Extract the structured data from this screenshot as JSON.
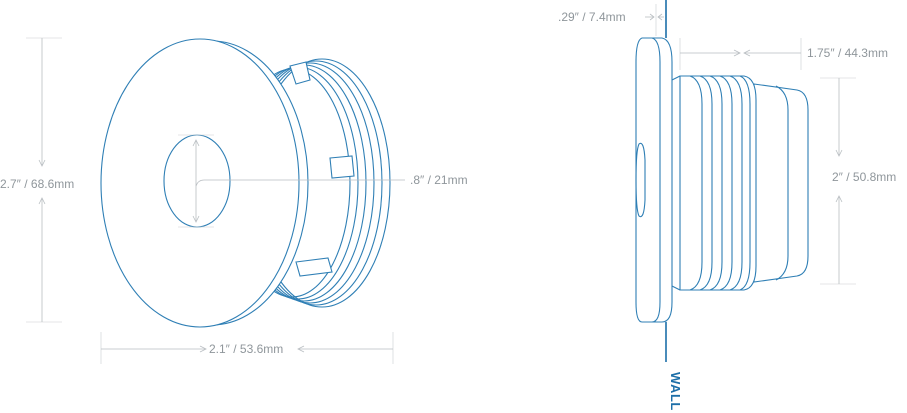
{
  "colors": {
    "outline": "#2f7fb5",
    "dimension": "#8f969b",
    "wall": "#1d6fa8",
    "background": "#ffffff"
  },
  "front_view": {
    "height_label": "2.7″ / 68.6mm",
    "width_label": "2.1″ / 53.6mm",
    "hole_label": ".8″ / 21mm"
  },
  "side_view": {
    "flange_label": ".29″ / 7.4mm",
    "depth_label": "1.75″ / 44.3mm",
    "body_diameter_label": "2″ / 50.8mm",
    "wall_label": "WALL"
  }
}
